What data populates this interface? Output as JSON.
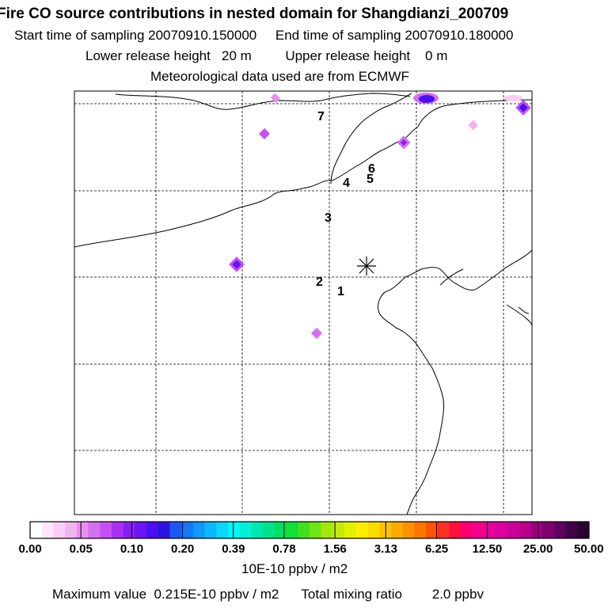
{
  "header": {
    "title": "Fire CO source contributions in nested domain for Shangdianzi_200709",
    "start_label": "Start time of sampling",
    "start_value": "20070910.150000",
    "end_label": "End time of sampling",
    "end_value": "20070910.180000",
    "lower_label": "Lower release height",
    "lower_value": "20 m",
    "upper_label": "Upper release height",
    "upper_value": "0 m",
    "met_text": "Meteorological data used are from ECMWF"
  },
  "map": {
    "trajectory_points": [
      "1",
      "2",
      "3",
      "4",
      "5",
      "6",
      "7"
    ],
    "receptor_marker": "asterisk-icon"
  },
  "colorbar": {
    "tick_labels": [
      "0.00",
      "0.05",
      "0.10",
      "0.20",
      "0.39",
      "0.78",
      "1.56",
      "3.13",
      "6.25",
      "12.50",
      "25.00",
      "50.00"
    ],
    "colors": [
      "#ffffff",
      "#fde6fb",
      "#f8cef5",
      "#f2b4f0",
      "#e890ee",
      "#d66ff0",
      "#c450f2",
      "#a830f2",
      "#8a1ef2",
      "#6a14f4",
      "#4a10f0",
      "#2e12e0",
      "#1858f4",
      "#1478f8",
      "#1098fa",
      "#0cb8fc",
      "#08d8fc",
      "#00f8f8",
      "#00f0d8",
      "#00e8b4",
      "#00e488",
      "#00e060",
      "#10e038",
      "#40e020",
      "#70e414",
      "#a0e80c",
      "#c4ec08",
      "#e4f000",
      "#fcf000",
      "#fcdc00",
      "#fcc400",
      "#fcac00",
      "#fc9000",
      "#fc7400",
      "#fc5400",
      "#fc3020",
      "#fc1040",
      "#fc0070",
      "#f4008c",
      "#e80098",
      "#dc00a0",
      "#cc0098",
      "#b8008c",
      "#9c0080",
      "#800070",
      "#600060",
      "#440048",
      "#2c0034"
    ],
    "unit": "10E-10 ppbv / m2"
  },
  "footer": {
    "max_label": "Maximum value",
    "max_value": "0.215E-10 ppbv / m2",
    "total_label": "Total mixing ratio",
    "total_value": "2.0 ppbv"
  }
}
